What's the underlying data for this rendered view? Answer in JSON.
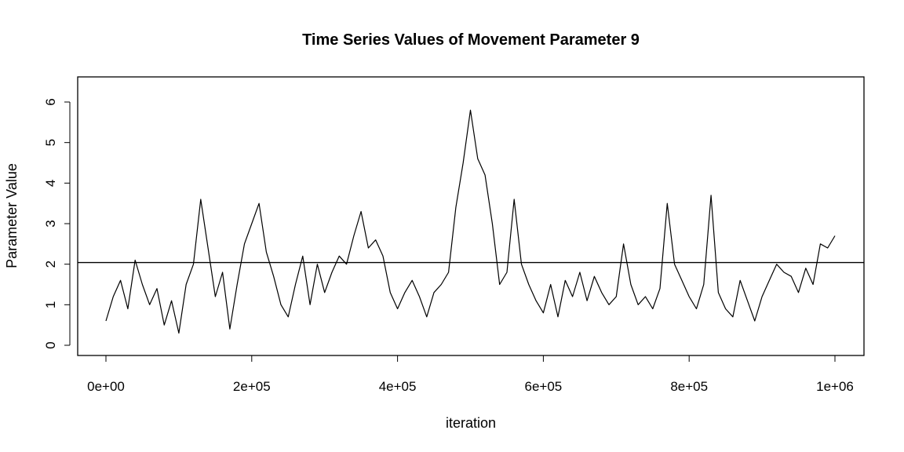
{
  "chart_data": {
    "type": "line",
    "title": "Time Series Values of Movement Parameter 9",
    "xlabel": "iteration",
    "ylabel": "Parameter Value",
    "xlim": [
      0,
      1000000
    ],
    "ylim": [
      0,
      6.35
    ],
    "x_ticks": [
      0,
      200000,
      400000,
      600000,
      800000,
      1000000
    ],
    "x_tick_labels": [
      "0e+00",
      "2e+05",
      "4e+05",
      "6e+05",
      "8e+05",
      "1e+06"
    ],
    "y_ticks": [
      0,
      1,
      2,
      3,
      4,
      5,
      6
    ],
    "y_tick_labels": [
      "0",
      "1",
      "2",
      "3",
      "4",
      "5",
      "6"
    ],
    "hline": 2.04,
    "grid": false,
    "colors": {
      "line": "#000000",
      "background": "#ffffff"
    },
    "series": [
      {
        "x": [
          0,
          10000,
          20000,
          30000,
          40000,
          50000,
          60000,
          70000,
          80000,
          90000,
          100000,
          110000,
          120000,
          130000,
          140000,
          150000,
          160000,
          170000,
          180000,
          190000,
          200000,
          210000,
          220000,
          230000,
          240000,
          250000,
          260000,
          270000,
          280000,
          290000,
          300000,
          310000,
          320000,
          330000,
          340000,
          350000,
          360000,
          370000,
          380000,
          390000,
          400000,
          410000,
          420000,
          430000,
          440000,
          450000,
          460000,
          470000,
          480000,
          490000,
          500000,
          510000,
          520000,
          530000,
          540000,
          550000,
          560000,
          570000,
          580000,
          590000,
          600000,
          610000,
          620000,
          630000,
          640000,
          650000,
          660000,
          670000,
          680000,
          690000,
          700000,
          710000,
          720000,
          730000,
          740000,
          750000,
          760000,
          770000,
          780000,
          790000,
          800000,
          810000,
          820000,
          830000,
          840000,
          850000,
          860000,
          870000,
          880000,
          890000,
          900000,
          910000,
          920000,
          930000,
          940000,
          950000,
          960000,
          970000,
          980000,
          990000,
          1000000
        ],
        "values": [
          0.6,
          1.2,
          1.6,
          0.9,
          2.1,
          1.5,
          1.0,
          1.4,
          0.5,
          1.1,
          0.3,
          1.5,
          2.0,
          3.6,
          2.4,
          1.2,
          1.8,
          0.4,
          1.5,
          2.5,
          3.0,
          3.5,
          2.3,
          1.7,
          1.0,
          0.7,
          1.5,
          2.2,
          1.0,
          2.0,
          1.3,
          1.8,
          2.2,
          2.0,
          2.7,
          3.3,
          2.4,
          2.6,
          2.2,
          1.3,
          0.9,
          1.3,
          1.6,
          1.2,
          0.7,
          1.3,
          1.5,
          1.8,
          3.4,
          4.5,
          5.8,
          4.6,
          4.2,
          3.0,
          1.5,
          1.8,
          3.6,
          2.0,
          1.5,
          1.1,
          0.8,
          1.5,
          0.7,
          1.6,
          1.2,
          1.8,
          1.1,
          1.7,
          1.3,
          1.0,
          1.2,
          2.5,
          1.5,
          1.0,
          1.2,
          0.9,
          1.4,
          3.5,
          2.0,
          1.6,
          1.2,
          0.9,
          1.5,
          3.7,
          1.3,
          0.9,
          0.7,
          1.6,
          1.1,
          0.6,
          1.2,
          1.6,
          2.0,
          1.8,
          1.7,
          1.3,
          1.9,
          1.5,
          2.5,
          2.4,
          2.7
        ]
      }
    ]
  }
}
